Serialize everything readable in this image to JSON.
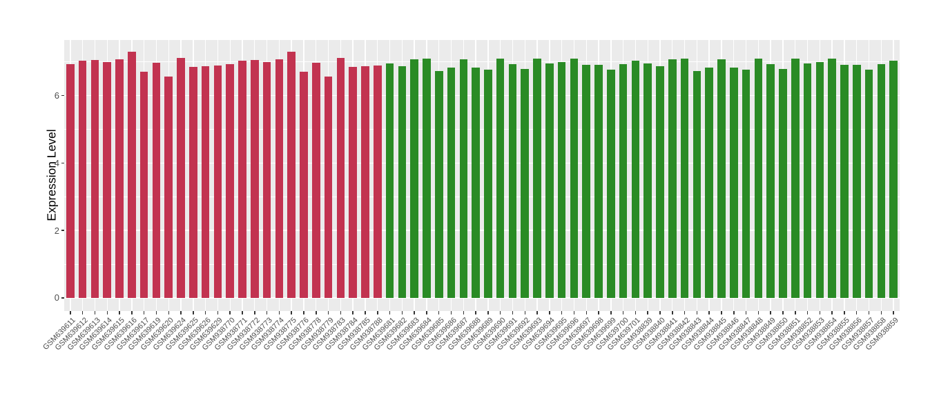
{
  "figure": {
    "background": "#FFFFFF",
    "panel_background": "#EBEBEB",
    "grid_color": "#FFFFFF",
    "axis_text_color": "#4D4D4D",
    "axis_title_color": "#000000",
    "tick_color": "#333333"
  },
  "chart_data": {
    "type": "bar",
    "title": "",
    "xlabel": "",
    "ylabel": "Expression Level",
    "yticks": [
      0,
      2,
      4,
      6
    ],
    "yticks_minor": [
      1,
      3,
      5,
      7
    ],
    "ylim": [
      -0.39,
      7.65
    ],
    "grid": "on",
    "legend": "none",
    "group_colors": {
      "red": "#C23350",
      "green": "#2A8B25"
    },
    "bars": [
      {
        "label": "GSM639611",
        "value": 6.94,
        "group": "red"
      },
      {
        "label": "GSM639612",
        "value": 7.03,
        "group": "red"
      },
      {
        "label": "GSM639613",
        "value": 7.05,
        "group": "red"
      },
      {
        "label": "GSM639614",
        "value": 6.99,
        "group": "red"
      },
      {
        "label": "GSM639615",
        "value": 7.08,
        "group": "red"
      },
      {
        "label": "GSM639616",
        "value": 7.3,
        "group": "red"
      },
      {
        "label": "GSM639617",
        "value": 6.71,
        "group": "red"
      },
      {
        "label": "GSM639619",
        "value": 6.98,
        "group": "red"
      },
      {
        "label": "GSM639620",
        "value": 6.57,
        "group": "red"
      },
      {
        "label": "GSM639624",
        "value": 7.11,
        "group": "red"
      },
      {
        "label": "GSM639625",
        "value": 6.86,
        "group": "red"
      },
      {
        "label": "GSM639626",
        "value": 6.88,
        "group": "red"
      },
      {
        "label": "GSM639629",
        "value": 6.9,
        "group": "red"
      },
      {
        "label": "GSM938770",
        "value": 6.94,
        "group": "red"
      },
      {
        "label": "GSM938771",
        "value": 7.03,
        "group": "red"
      },
      {
        "label": "GSM938772",
        "value": 7.05,
        "group": "red"
      },
      {
        "label": "GSM938773",
        "value": 6.99,
        "group": "red"
      },
      {
        "label": "GSM938774",
        "value": 7.08,
        "group": "red"
      },
      {
        "label": "GSM938775",
        "value": 7.3,
        "group": "red"
      },
      {
        "label": "GSM938776",
        "value": 6.71,
        "group": "red"
      },
      {
        "label": "GSM938778",
        "value": 6.98,
        "group": "red"
      },
      {
        "label": "GSM938779",
        "value": 6.57,
        "group": "red"
      },
      {
        "label": "GSM938783",
        "value": 7.11,
        "group": "red"
      },
      {
        "label": "GSM938784",
        "value": 6.86,
        "group": "red"
      },
      {
        "label": "GSM938785",
        "value": 6.88,
        "group": "red"
      },
      {
        "label": "GSM938788",
        "value": 6.9,
        "group": "red"
      },
      {
        "label": "GSM639681",
        "value": 6.95,
        "group": "green"
      },
      {
        "label": "GSM639682",
        "value": 6.87,
        "group": "green"
      },
      {
        "label": "GSM639683",
        "value": 7.08,
        "group": "green"
      },
      {
        "label": "GSM639684",
        "value": 7.1,
        "group": "green"
      },
      {
        "label": "GSM639685",
        "value": 6.73,
        "group": "green"
      },
      {
        "label": "GSM639686",
        "value": 6.83,
        "group": "green"
      },
      {
        "label": "GSM639687",
        "value": 7.08,
        "group": "green"
      },
      {
        "label": "GSM639688",
        "value": 6.84,
        "group": "green"
      },
      {
        "label": "GSM639689",
        "value": 6.78,
        "group": "green"
      },
      {
        "label": "GSM639690",
        "value": 7.09,
        "group": "green"
      },
      {
        "label": "GSM639691",
        "value": 6.94,
        "group": "green"
      },
      {
        "label": "GSM639692",
        "value": 6.8,
        "group": "green"
      },
      {
        "label": "GSM639693",
        "value": 7.09,
        "group": "green"
      },
      {
        "label": "GSM639694",
        "value": 6.95,
        "group": "green"
      },
      {
        "label": "GSM639695",
        "value": 7.0,
        "group": "green"
      },
      {
        "label": "GSM639696",
        "value": 7.1,
        "group": "green"
      },
      {
        "label": "GSM639697",
        "value": 6.92,
        "group": "green"
      },
      {
        "label": "GSM639698",
        "value": 6.92,
        "group": "green"
      },
      {
        "label": "GSM639699",
        "value": 6.78,
        "group": "green"
      },
      {
        "label": "GSM639700",
        "value": 6.93,
        "group": "green"
      },
      {
        "label": "GSM639701",
        "value": 7.03,
        "group": "green"
      },
      {
        "label": "GSM938839",
        "value": 6.95,
        "group": "green"
      },
      {
        "label": "GSM938840",
        "value": 6.87,
        "group": "green"
      },
      {
        "label": "GSM938841",
        "value": 7.08,
        "group": "green"
      },
      {
        "label": "GSM938842",
        "value": 7.1,
        "group": "green"
      },
      {
        "label": "GSM938843",
        "value": 6.73,
        "group": "green"
      },
      {
        "label": "GSM938844",
        "value": 6.83,
        "group": "green"
      },
      {
        "label": "GSM938845",
        "value": 7.08,
        "group": "green"
      },
      {
        "label": "GSM938846",
        "value": 6.84,
        "group": "green"
      },
      {
        "label": "GSM938847",
        "value": 6.78,
        "group": "green"
      },
      {
        "label": "GSM938848",
        "value": 7.09,
        "group": "green"
      },
      {
        "label": "GSM938849",
        "value": 6.94,
        "group": "green"
      },
      {
        "label": "GSM938850",
        "value": 6.8,
        "group": "green"
      },
      {
        "label": "GSM938851",
        "value": 7.09,
        "group": "green"
      },
      {
        "label": "GSM938852",
        "value": 6.95,
        "group": "green"
      },
      {
        "label": "GSM938853",
        "value": 7.0,
        "group": "green"
      },
      {
        "label": "GSM938854",
        "value": 7.1,
        "group": "green"
      },
      {
        "label": "GSM938855",
        "value": 6.92,
        "group": "green"
      },
      {
        "label": "GSM938856",
        "value": 6.92,
        "group": "green"
      },
      {
        "label": "GSM938857",
        "value": 6.78,
        "group": "green"
      },
      {
        "label": "GSM938858",
        "value": 6.93,
        "group": "green"
      },
      {
        "label": "GSM938859",
        "value": 7.03,
        "group": "green"
      }
    ]
  }
}
